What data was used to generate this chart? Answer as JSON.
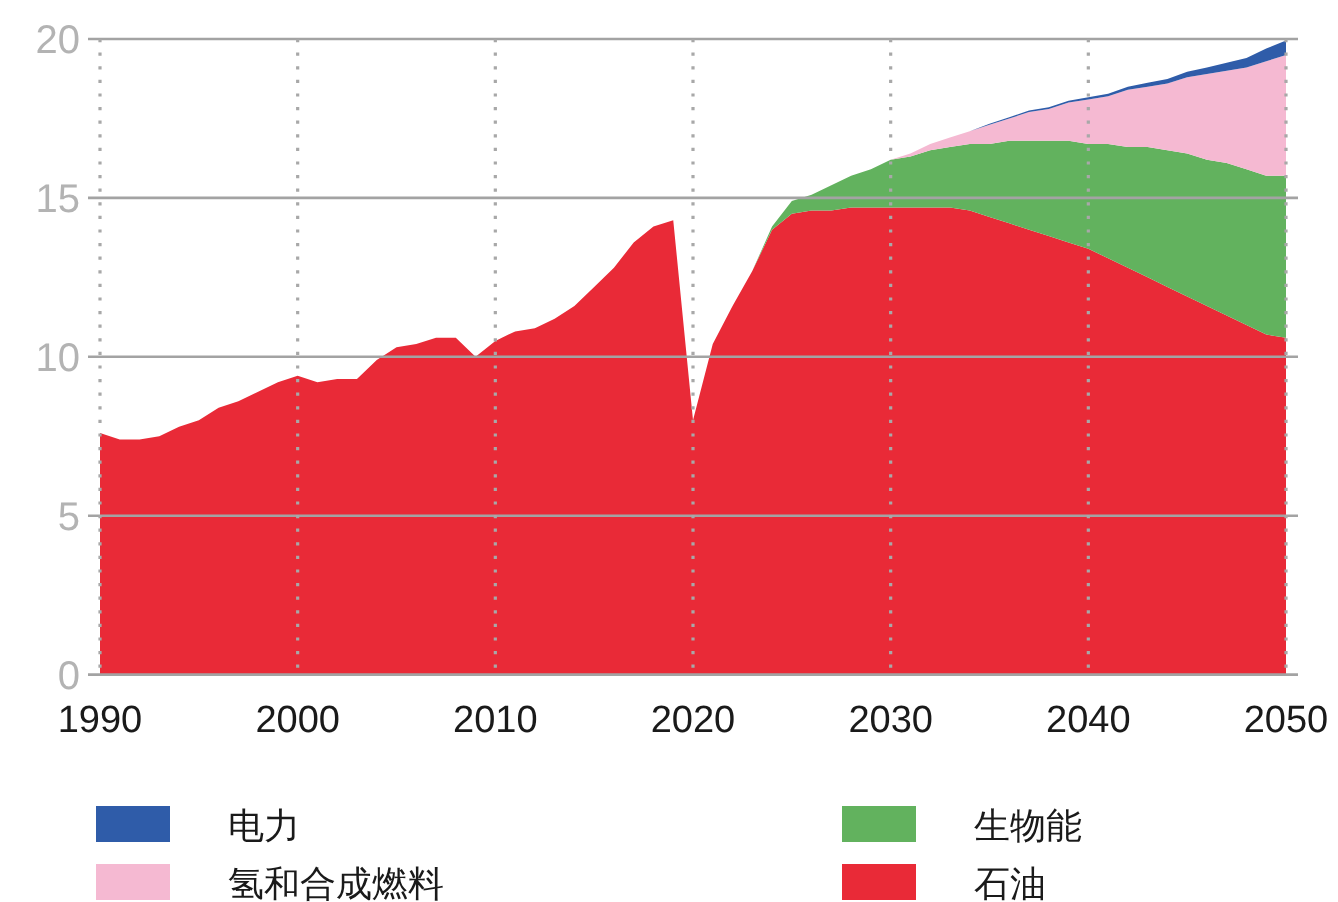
{
  "chart_data": {
    "type": "area",
    "stacked": true,
    "x": [
      1990,
      1991,
      1992,
      1993,
      1994,
      1995,
      1996,
      1997,
      1998,
      1999,
      2000,
      2001,
      2002,
      2003,
      2004,
      2005,
      2006,
      2007,
      2008,
      2009,
      2010,
      2011,
      2012,
      2013,
      2014,
      2015,
      2016,
      2017,
      2018,
      2019,
      2020,
      2021,
      2022,
      2023,
      2024,
      2025,
      2026,
      2027,
      2028,
      2029,
      2030,
      2031,
      2032,
      2033,
      2034,
      2035,
      2036,
      2037,
      2038,
      2039,
      2040,
      2041,
      2042,
      2043,
      2044,
      2045,
      2046,
      2047,
      2048,
      2049,
      2050
    ],
    "series": [
      {
        "name": "石油",
        "color": "#e92a37",
        "values": [
          7.6,
          7.4,
          7.4,
          7.5,
          7.8,
          8.0,
          8.4,
          8.6,
          8.9,
          9.2,
          9.4,
          9.2,
          9.3,
          9.3,
          9.9,
          10.3,
          10.4,
          10.6,
          10.6,
          10.0,
          10.5,
          10.8,
          10.9,
          11.2,
          11.6,
          12.2,
          12.8,
          13.6,
          14.1,
          14.3,
          8.0,
          10.4,
          11.6,
          12.7,
          14.0,
          14.5,
          14.6,
          14.6,
          14.7,
          14.7,
          14.7,
          14.7,
          14.7,
          14.7,
          14.6,
          14.4,
          14.2,
          14.0,
          13.8,
          13.6,
          13.4,
          13.1,
          12.8,
          12.5,
          12.2,
          11.9,
          11.6,
          11.3,
          11.0,
          10.7,
          10.6
        ]
      },
      {
        "name": "生物能",
        "color": "#62b25e",
        "values": [
          null,
          null,
          null,
          null,
          null,
          null,
          null,
          null,
          null,
          null,
          null,
          null,
          null,
          null,
          null,
          null,
          null,
          null,
          null,
          null,
          null,
          null,
          null,
          null,
          null,
          null,
          null,
          null,
          null,
          null,
          null,
          null,
          null,
          0,
          0.1,
          0.4,
          0.5,
          0.8,
          1.0,
          1.2,
          1.5,
          1.6,
          1.8,
          1.9,
          2.1,
          2.3,
          2.6,
          2.8,
          3.0,
          3.2,
          3.3,
          3.6,
          3.8,
          4.1,
          4.3,
          4.5,
          4.6,
          4.8,
          4.9,
          5.0,
          5.1
        ]
      },
      {
        "name": "氢和合成燃料",
        "color": "#f5b9d2",
        "values": [
          null,
          null,
          null,
          null,
          null,
          null,
          null,
          null,
          null,
          null,
          null,
          null,
          null,
          null,
          null,
          null,
          null,
          null,
          null,
          null,
          null,
          null,
          null,
          null,
          null,
          null,
          null,
          null,
          null,
          null,
          null,
          null,
          null,
          null,
          null,
          null,
          null,
          null,
          null,
          null,
          0,
          0.1,
          0.2,
          0.3,
          0.4,
          0.6,
          0.7,
          0.9,
          1.0,
          1.2,
          1.4,
          1.5,
          1.8,
          1.9,
          2.1,
          2.4,
          2.7,
          2.9,
          3.2,
          3.6,
          3.8
        ]
      },
      {
        "name": "电力",
        "color": "#2f5ca9",
        "values": [
          null,
          null,
          null,
          null,
          null,
          null,
          null,
          null,
          null,
          null,
          null,
          null,
          null,
          null,
          null,
          null,
          null,
          null,
          null,
          null,
          null,
          null,
          null,
          null,
          null,
          null,
          null,
          null,
          null,
          null,
          null,
          null,
          null,
          null,
          null,
          null,
          null,
          null,
          null,
          null,
          null,
          null,
          null,
          null,
          0,
          0.03,
          0.04,
          0.05,
          0.05,
          0.06,
          0.07,
          0.08,
          0.1,
          0.12,
          0.14,
          0.17,
          0.2,
          0.25,
          0.3,
          0.4,
          0.45
        ]
      }
    ],
    "xlim": [
      1990,
      2050
    ],
    "ylim": [
      0,
      20
    ],
    "xticks": [
      1990,
      2000,
      2010,
      2020,
      2030,
      2040,
      2050
    ],
    "yticks": [
      0,
      5,
      10,
      15,
      20
    ],
    "grid": true,
    "legend": "bottom"
  }
}
